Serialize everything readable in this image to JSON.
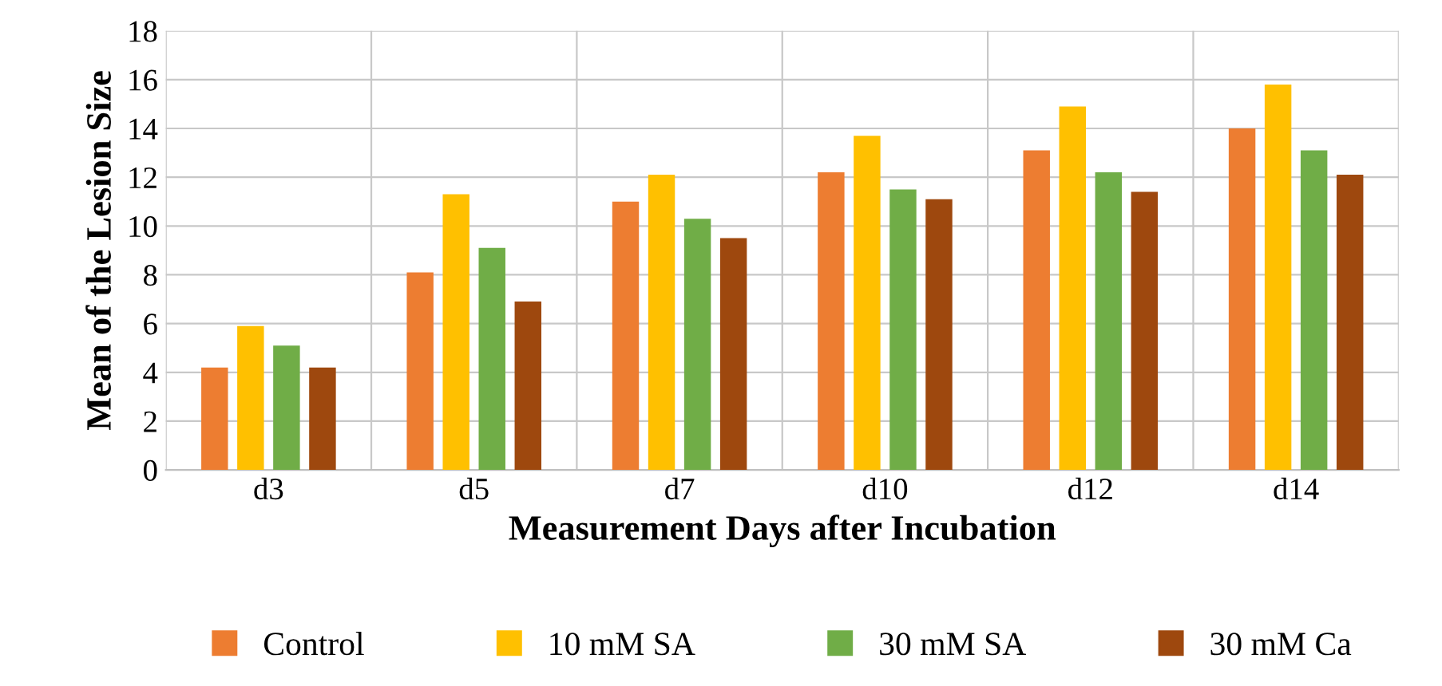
{
  "chart_data": {
    "type": "bar",
    "xlabel": "Measurement Days after Incubation",
    "ylabel": "Mean of the Lesion Size",
    "categories": [
      "d3",
      "d5",
      "d7",
      "d10",
      "d12",
      "d14"
    ],
    "series": [
      {
        "name": "Control",
        "color": "#ed7d31",
        "values": [
          4.2,
          8.1,
          11.0,
          12.2,
          13.1,
          14.0
        ]
      },
      {
        "name": "10 mM SA",
        "color": "#ffc000",
        "values": [
          5.9,
          11.3,
          12.1,
          13.7,
          14.9,
          15.8
        ]
      },
      {
        "name": "30 mM SA",
        "color": "#70ad47",
        "values": [
          5.1,
          9.1,
          10.3,
          11.5,
          12.2,
          13.1
        ]
      },
      {
        "name": "30 mM Ca",
        "color": "#9e480e",
        "values": [
          4.2,
          6.9,
          9.5,
          11.1,
          11.4,
          12.1
        ]
      }
    ],
    "ylim": [
      0,
      18
    ],
    "yticks": [
      0,
      2,
      4,
      6,
      8,
      10,
      12,
      14,
      16,
      18
    ],
    "grid": true,
    "legend": "bottom"
  }
}
